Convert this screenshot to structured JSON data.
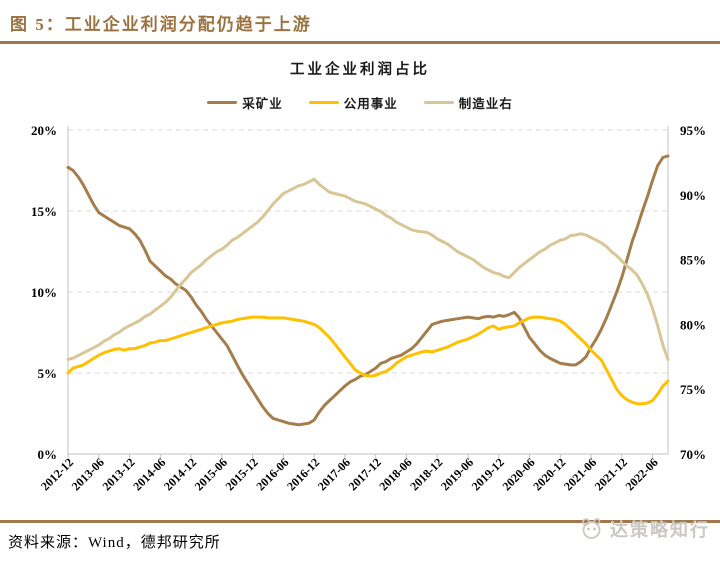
{
  "figure": {
    "caption": "图 5：工业企业利润分配仍趋于上游",
    "source": "资料来源：Wind，德邦研究所",
    "watermark": "达策略知行"
  },
  "colors": {
    "brand_brown": "#9B7342",
    "rule_brown": "#A0784E",
    "gridline": "#DBDBDB",
    "axis_line": "#C0C0C0",
    "watermark_gray": "#CBC8C2"
  },
  "chart_data": {
    "type": "line",
    "title": "工业企业利润占比",
    "grid": "horizontal-dashed",
    "legend_position": "top",
    "x_monthly_start": "2012-12",
    "x_monthly_end": "2022-09",
    "x_ticks_every_n_months": 6,
    "x_tick_labels": [
      "2012-12",
      "2013-06",
      "2013-12",
      "2014-06",
      "2014-12",
      "2015-06",
      "2015-12",
      "2016-06",
      "2016-12",
      "2017-06",
      "2017-12",
      "2018-06",
      "2018-12",
      "2019-06",
      "2019-12",
      "2020-06",
      "2020-12",
      "2021-06",
      "2021-12",
      "2022-06"
    ],
    "left_axis": {
      "min": 0,
      "max": 20,
      "tick_labels": [
        "0%",
        "5%",
        "10%",
        "15%",
        "20%"
      ]
    },
    "right_axis": {
      "min": 70,
      "max": 95,
      "tick_labels": [
        "70%",
        "75%",
        "80%",
        "85%",
        "90%",
        "95%"
      ]
    },
    "series": [
      {
        "key": "mining",
        "name": "采矿业",
        "axis": "left",
        "color": "#A37D4C",
        "values": [
          17.7,
          17.5,
          17.1,
          16.6,
          16.0,
          15.4,
          14.9,
          14.7,
          14.5,
          14.3,
          14.1,
          14.0,
          13.9,
          13.6,
          13.2,
          12.6,
          11.9,
          11.6,
          11.3,
          11.0,
          10.8,
          10.5,
          10.3,
          10.1,
          9.7,
          9.2,
          8.8,
          8.3,
          7.9,
          7.5,
          7.1,
          6.7,
          6.1,
          5.5,
          4.9,
          4.4,
          3.9,
          3.4,
          2.9,
          2.5,
          2.2,
          2.1,
          2.0,
          1.9,
          1.85,
          1.8,
          1.85,
          1.9,
          2.1,
          2.6,
          3.0,
          3.3,
          3.6,
          3.9,
          4.2,
          4.45,
          4.6,
          4.8,
          4.9,
          5.1,
          5.3,
          5.6,
          5.7,
          5.9,
          6.0,
          6.1,
          6.3,
          6.5,
          6.8,
          7.2,
          7.6,
          8.0,
          8.1,
          8.2,
          8.25,
          8.3,
          8.35,
          8.4,
          8.45,
          8.4,
          8.35,
          8.45,
          8.5,
          8.45,
          8.55,
          8.5,
          8.6,
          8.75,
          8.4,
          7.8,
          7.2,
          6.8,
          6.4,
          6.1,
          5.9,
          5.75,
          5.6,
          5.55,
          5.5,
          5.5,
          5.7,
          6.0,
          6.6,
          7.1,
          7.7,
          8.4,
          9.2,
          10.0,
          10.9,
          12.0,
          13.1,
          14.0,
          15.0,
          15.9,
          16.9,
          17.8,
          18.3,
          18.4
        ]
      },
      {
        "key": "utilities",
        "name": "公用事业",
        "axis": "left",
        "color": "#FFC000",
        "values": [
          5.0,
          5.3,
          5.4,
          5.5,
          5.7,
          5.9,
          6.1,
          6.25,
          6.35,
          6.45,
          6.5,
          6.4,
          6.5,
          6.5,
          6.6,
          6.7,
          6.85,
          6.9,
          7.0,
          7.0,
          7.1,
          7.2,
          7.3,
          7.4,
          7.5,
          7.6,
          7.7,
          7.8,
          7.9,
          8.0,
          8.1,
          8.15,
          8.2,
          8.3,
          8.35,
          8.4,
          8.45,
          8.45,
          8.45,
          8.4,
          8.4,
          8.4,
          8.4,
          8.35,
          8.3,
          8.25,
          8.2,
          8.1,
          8.0,
          7.8,
          7.5,
          7.2,
          6.8,
          6.4,
          6.0,
          5.6,
          5.2,
          5.0,
          4.85,
          4.8,
          4.85,
          5.0,
          5.1,
          5.3,
          5.6,
          5.8,
          6.0,
          6.1,
          6.2,
          6.3,
          6.35,
          6.3,
          6.4,
          6.5,
          6.6,
          6.75,
          6.9,
          7.0,
          7.1,
          7.25,
          7.4,
          7.6,
          7.8,
          7.9,
          7.7,
          7.8,
          7.85,
          7.9,
          8.1,
          8.25,
          8.4,
          8.45,
          8.45,
          8.4,
          8.35,
          8.3,
          8.2,
          8.0,
          7.7,
          7.4,
          7.1,
          6.8,
          6.4,
          6.1,
          5.8,
          5.2,
          4.6,
          4.0,
          3.6,
          3.35,
          3.2,
          3.1,
          3.1,
          3.15,
          3.3,
          3.7,
          4.2,
          4.5
        ]
      },
      {
        "key": "manufacturing",
        "name": "制造业右",
        "axis": "right",
        "color": "#D8C696",
        "values": [
          77.3,
          77.4,
          77.6,
          77.8,
          78.0,
          78.2,
          78.4,
          78.7,
          78.9,
          79.2,
          79.4,
          79.7,
          79.9,
          80.1,
          80.3,
          80.6,
          80.8,
          81.1,
          81.4,
          81.7,
          82.1,
          82.6,
          83.1,
          83.5,
          84.0,
          84.3,
          84.6,
          85.0,
          85.3,
          85.6,
          85.8,
          86.1,
          86.5,
          86.7,
          87.0,
          87.3,
          87.6,
          87.9,
          88.3,
          88.8,
          89.3,
          89.7,
          90.1,
          90.3,
          90.5,
          90.7,
          90.8,
          91.0,
          91.2,
          90.8,
          90.5,
          90.2,
          90.1,
          90.0,
          89.9,
          89.7,
          89.5,
          89.4,
          89.3,
          89.1,
          88.9,
          88.7,
          88.4,
          88.2,
          87.9,
          87.7,
          87.5,
          87.3,
          87.2,
          87.15,
          87.1,
          86.9,
          86.6,
          86.4,
          86.2,
          85.9,
          85.6,
          85.4,
          85.2,
          85.0,
          84.7,
          84.4,
          84.2,
          84.0,
          83.9,
          83.7,
          83.6,
          84.0,
          84.4,
          84.7,
          85.0,
          85.3,
          85.6,
          85.8,
          86.1,
          86.3,
          86.5,
          86.6,
          86.85,
          86.9,
          87.0,
          86.9,
          86.7,
          86.5,
          86.3,
          86.0,
          85.6,
          85.3,
          84.9,
          84.5,
          84.2,
          83.8,
          83.1,
          82.3,
          81.2,
          79.9,
          78.4,
          77.3
        ]
      }
    ]
  }
}
